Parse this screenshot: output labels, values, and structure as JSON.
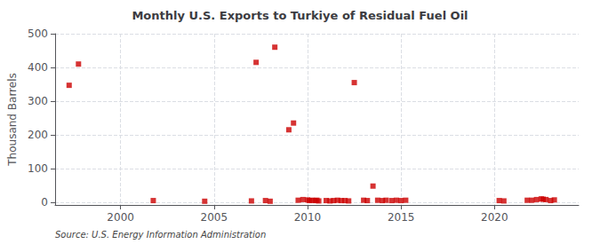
{
  "chart_data": {
    "type": "scatter",
    "title": "Monthly U.S. Exports to Turkiye of Residual Fuel Oil",
    "ylabel": "Thousand Barrels",
    "source": "Source: U.S. Energy Information Administration",
    "color": "#cc0000",
    "marker": "square",
    "grid": true,
    "xlim": [
      1996.5,
      2024.5
    ],
    "ylim": [
      -8,
      500
    ],
    "xticks": [
      2000,
      2005,
      2010,
      2015,
      2020
    ],
    "yticks": [
      0,
      100,
      200,
      300,
      400,
      500
    ],
    "x": [
      1997.25,
      1997.75,
      2001.75,
      2004.5,
      2007.0,
      2007.25,
      2007.75,
      2008.0,
      2008.25,
      2009.0,
      2009.25,
      2009.5,
      2009.75,
      2010.0,
      2010.1,
      2010.25,
      2010.4,
      2010.5,
      2010.6,
      2011.0,
      2011.2,
      2011.4,
      2011.6,
      2011.8,
      2012.0,
      2012.2,
      2012.5,
      2013.0,
      2013.2,
      2013.5,
      2013.75,
      2014.0,
      2014.2,
      2014.5,
      2014.75,
      2015.0,
      2015.25,
      2020.25,
      2020.5,
      2021.75,
      2022.0,
      2022.25,
      2022.5,
      2022.6,
      2022.75,
      2023.0,
      2023.2
    ],
    "values": [
      347,
      410,
      5,
      3,
      4,
      415,
      5,
      3,
      460,
      215,
      235,
      6,
      8,
      7,
      5,
      6,
      5,
      6,
      4,
      5,
      4,
      5,
      6,
      5,
      5,
      4,
      355,
      6,
      5,
      48,
      6,
      5,
      6,
      5,
      6,
      5,
      6,
      5,
      4,
      6,
      6,
      8,
      10,
      9,
      8,
      5,
      7
    ]
  }
}
